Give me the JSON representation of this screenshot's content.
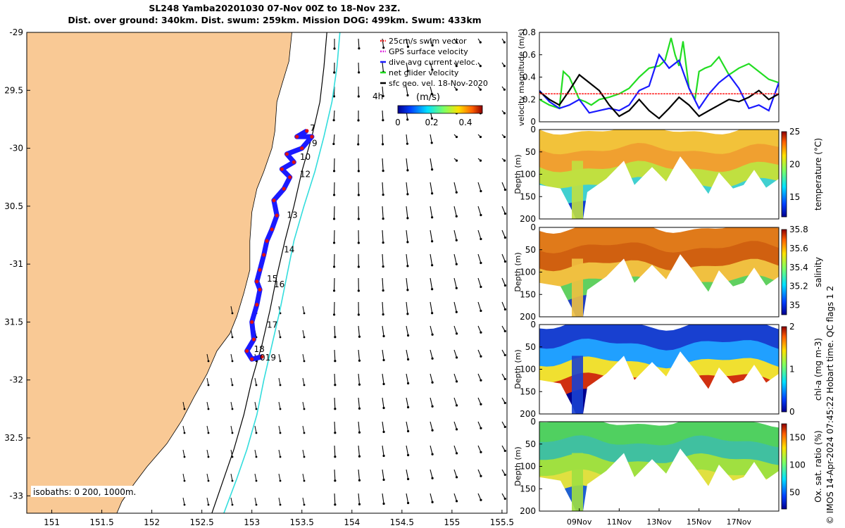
{
  "header": {
    "line1": "SL248 Yamba20201030 07-Nov 00Z to 18-Nov 23Z.",
    "line2": "Dist. over ground: 340km. Dist. swum: 259km. Mission DOG: 499km. Swum: 433km"
  },
  "credit": "© IMOS 14-Apr-2024 07:45:22 Hobart time. QC flags 1  2",
  "colors": {
    "land": "#f9c995",
    "glider_track": "#1a1aff",
    "track_points": "#e01010",
    "shelf_isobath": "#33dddd",
    "deep_isobath": "#000000"
  },
  "chart_data": [
    {
      "type": "scatter",
      "panel": "map",
      "xlim": [
        150.75,
        155.55
      ],
      "ylim": [
        -33.15,
        -29.0
      ],
      "xticks": [
        151,
        151.5,
        152,
        152.5,
        153,
        153.5,
        154,
        154.5,
        155,
        155.5
      ],
      "xtick_labels": [
        "151",
        "151.5",
        "152",
        "152.5",
        "153",
        "153.5",
        "154",
        "154.5",
        "155",
        "155.5"
      ],
      "yticks": [
        -29,
        -29.5,
        -30,
        -30.5,
        -31,
        -31.5,
        -32,
        -32.5,
        -33
      ],
      "ytick_labels": [
        "-29",
        "29.5",
        "-30",
        "30.5",
        "-31",
        "31.5",
        "-32",
        "32.5",
        "-33"
      ],
      "coast": [
        [
          153.4,
          -29.0
        ],
        [
          153.37,
          -29.25
        ],
        [
          153.3,
          -29.45
        ],
        [
          153.25,
          -29.6
        ],
        [
          153.23,
          -29.85
        ],
        [
          153.2,
          -30.0
        ],
        [
          153.12,
          -30.2
        ],
        [
          153.05,
          -30.35
        ],
        [
          153.0,
          -30.55
        ],
        [
          152.98,
          -30.8
        ],
        [
          152.98,
          -31.05
        ],
        [
          152.92,
          -31.25
        ],
        [
          152.85,
          -31.45
        ],
        [
          152.78,
          -31.6
        ],
        [
          152.65,
          -31.75
        ],
        [
          152.55,
          -31.95
        ],
        [
          152.42,
          -32.15
        ],
        [
          152.3,
          -32.35
        ],
        [
          152.15,
          -32.55
        ],
        [
          151.95,
          -32.75
        ],
        [
          151.82,
          -32.9
        ],
        [
          151.7,
          -33.05
        ],
        [
          151.65,
          -33.15
        ]
      ],
      "isobath_200": [
        [
          153.88,
          -29.0
        ],
        [
          153.85,
          -29.3
        ],
        [
          153.8,
          -29.6
        ],
        [
          153.72,
          -29.9
        ],
        [
          153.63,
          -30.2
        ],
        [
          153.52,
          -30.5
        ],
        [
          153.42,
          -30.8
        ],
        [
          153.35,
          -31.1
        ],
        [
          153.28,
          -31.4
        ],
        [
          153.2,
          -31.7
        ],
        [
          153.12,
          -32.0
        ],
        [
          153.05,
          -32.3
        ],
        [
          152.95,
          -32.6
        ],
        [
          152.85,
          -32.85
        ],
        [
          152.72,
          -33.15
        ]
      ],
      "isobath_1000": [
        [
          153.75,
          -29.0
        ],
        [
          153.72,
          -29.3
        ],
        [
          153.68,
          -29.6
        ],
        [
          153.6,
          -29.9
        ],
        [
          153.5,
          -30.2
        ],
        [
          153.42,
          -30.5
        ],
        [
          153.33,
          -30.8
        ],
        [
          153.25,
          -31.1
        ],
        [
          153.18,
          -31.4
        ],
        [
          153.1,
          -31.7
        ],
        [
          153.0,
          -32.0
        ],
        [
          152.92,
          -32.3
        ],
        [
          152.82,
          -32.6
        ],
        [
          152.72,
          -32.85
        ],
        [
          152.6,
          -33.15
        ]
      ],
      "track": [
        [
          153.55,
          -29.85
        ],
        [
          153.45,
          -29.9
        ],
        [
          153.6,
          -29.9
        ],
        [
          153.5,
          -30.0
        ],
        [
          153.35,
          -30.05
        ],
        [
          153.42,
          -30.12
        ],
        [
          153.3,
          -30.18
        ],
        [
          153.38,
          -30.25
        ],
        [
          153.32,
          -30.35
        ],
        [
          153.22,
          -30.45
        ],
        [
          153.25,
          -30.58
        ],
        [
          153.2,
          -30.7
        ],
        [
          153.15,
          -30.8
        ],
        [
          153.12,
          -30.92
        ],
        [
          153.08,
          -31.05
        ],
        [
          153.05,
          -31.15
        ],
        [
          153.08,
          -31.22
        ],
        [
          153.05,
          -31.35
        ],
        [
          153.0,
          -31.5
        ],
        [
          153.02,
          -31.65
        ],
        [
          152.95,
          -31.75
        ],
        [
          153.0,
          -31.82
        ],
        [
          153.1,
          -31.8
        ]
      ],
      "day_labels": [
        {
          "text": "7",
          "lon": 153.58,
          "lat": -29.85
        },
        {
          "text": "9",
          "lon": 153.6,
          "lat": -29.98
        },
        {
          "text": "10",
          "lon": 153.48,
          "lat": -30.1
        },
        {
          "text": "12",
          "lon": 153.48,
          "lat": -30.25
        },
        {
          "text": "13",
          "lon": 153.35,
          "lat": -30.6
        },
        {
          "text": "14",
          "lon": 153.32,
          "lat": -30.9
        },
        {
          "text": "15",
          "lon": 153.15,
          "lat": -31.15
        },
        {
          "text": "16",
          "lon": 153.22,
          "lat": -31.2
        },
        {
          "text": "17",
          "lon": 153.15,
          "lat": -31.55
        },
        {
          "text": "18",
          "lon": 153.02,
          "lat": -31.76
        },
        {
          "text": "019",
          "lon": 153.08,
          "lat": -31.83
        }
      ],
      "legend": [
        "25cm/s swim vector",
        "GPS surface velocity",
        "dive avg current veloc.",
        "net glider velocity",
        "sfc geo. vel. 18-Nov-2020"
      ],
      "legend_colors": [
        "#ff2020",
        "#dd22dd",
        "#1a1aff",
        "#22dd22",
        "#000000"
      ],
      "vector_label": "4h",
      "colorbar": {
        "label": "(m/s)",
        "range": [
          0,
          0.5
        ],
        "ticks": [
          0,
          0.2,
          0.4
        ],
        "tick_labels": [
          "0",
          "0.2",
          "0.4"
        ]
      },
      "isobath_note": "isobaths: 0   200, 1000m."
    },
    {
      "type": "line",
      "panel": "velocity",
      "ylabel": "velocity magnitude (m/s)",
      "ylim": [
        0,
        0.8
      ],
      "yticks": [
        0,
        0.2,
        0.4,
        0.6,
        0.8
      ],
      "ytick_labels": [
        "0",
        "0.2",
        "0.4",
        "0.6",
        "0.8"
      ],
      "xlim": [
        7,
        19
      ],
      "series": [
        {
          "color": "#22dd22",
          "x": [
            7,
            7.5,
            8,
            8.2,
            8.5,
            9,
            9.3,
            9.6,
            10,
            10.5,
            11,
            11.5,
            12,
            12.5,
            13,
            13.3,
            13.6,
            13.8,
            14,
            14.2,
            14.5,
            14.8,
            15,
            15.3,
            15.6,
            16,
            16.5,
            17,
            17.5,
            18,
            18.5,
            19
          ],
          "y": [
            0.2,
            0.15,
            0.12,
            0.45,
            0.4,
            0.2,
            0.18,
            0.15,
            0.2,
            0.22,
            0.25,
            0.3,
            0.4,
            0.48,
            0.5,
            0.55,
            0.75,
            0.6,
            0.5,
            0.72,
            0.3,
            0.2,
            0.45,
            0.48,
            0.5,
            0.58,
            0.42,
            0.48,
            0.52,
            0.45,
            0.38,
            0.35
          ]
        },
        {
          "color": "#1a1aff",
          "x": [
            7,
            7.5,
            8,
            8.5,
            9,
            9.5,
            10,
            10.5,
            11,
            11.5,
            12,
            12.5,
            13,
            13.5,
            14,
            14.5,
            15,
            15.5,
            16,
            16.5,
            17,
            17.5,
            18,
            18.5,
            19
          ],
          "y": [
            0.28,
            0.18,
            0.12,
            0.15,
            0.2,
            0.08,
            0.1,
            0.12,
            0.1,
            0.15,
            0.28,
            0.32,
            0.6,
            0.48,
            0.55,
            0.3,
            0.12,
            0.25,
            0.35,
            0.42,
            0.3,
            0.12,
            0.15,
            0.1,
            0.35
          ]
        },
        {
          "color": "#000000",
          "x": [
            7,
            7.5,
            8,
            8.5,
            9,
            9.5,
            10,
            10.5,
            11,
            11.5,
            12,
            12.5,
            13,
            13.5,
            14,
            14.5,
            15,
            15.5,
            16,
            16.5,
            17,
            17.5,
            18,
            18.5,
            19
          ],
          "y": [
            0.27,
            0.2,
            0.15,
            0.28,
            0.42,
            0.35,
            0.28,
            0.15,
            0.05,
            0.1,
            0.2,
            0.1,
            0.03,
            0.12,
            0.22,
            0.15,
            0.05,
            0.1,
            0.15,
            0.2,
            0.18,
            0.22,
            0.28,
            0.2,
            0.25
          ]
        },
        {
          "color": "#ff2020",
          "x": [
            7,
            19
          ],
          "y": [
            0.25,
            0.25
          ]
        }
      ]
    },
    {
      "type": "heatmap",
      "panel": "temperature",
      "ylabel": "Depth (m)",
      "cbar_label": "temperature (°C)",
      "ylim": [
        0,
        200
      ],
      "yticks": [
        0,
        50,
        100,
        150,
        200
      ],
      "ytick_labels": [
        "0",
        "50",
        "100",
        "150",
        "200"
      ],
      "cbar_ticks": [
        "25",
        "20",
        "15"
      ],
      "cbar_range": [
        12,
        25
      ]
    },
    {
      "type": "heatmap",
      "panel": "salinity",
      "ylabel": "Depth (m)",
      "cbar_label": "salinity",
      "ylim": [
        0,
        200
      ],
      "yticks": [
        0,
        50,
        100,
        150,
        200
      ],
      "ytick_labels": [
        "0",
        "50",
        "100",
        "150",
        "200"
      ],
      "cbar_ticks": [
        "35.8",
        "35.6",
        "35.4",
        "35.2",
        "35"
      ],
      "cbar_range": [
        34.9,
        35.8
      ]
    },
    {
      "type": "heatmap",
      "panel": "chlorophyll",
      "ylabel": "Depth (m)",
      "cbar_label": "chl-a (mg m-3)",
      "ylim": [
        0,
        200
      ],
      "yticks": [
        0,
        50,
        100,
        150,
        200
      ],
      "ytick_labels": [
        "0",
        "50",
        "100",
        "150",
        "200"
      ],
      "cbar_ticks": [
        "2",
        "1",
        "0"
      ],
      "cbar_range": [
        0,
        2
      ]
    },
    {
      "type": "heatmap",
      "panel": "oxygen",
      "ylabel": "Depth (m)",
      "cbar_label": "Ox. sat. ratio (%)",
      "ylim": [
        0,
        200
      ],
      "yticks": [
        0,
        50,
        100,
        150,
        200
      ],
      "ytick_labels": [
        "0",
        "50",
        "100",
        "150",
        "200"
      ],
      "cbar_ticks": [
        "150",
        "100",
        "50"
      ],
      "cbar_range": [
        20,
        175
      ],
      "xtick_labels": [
        "09Nov",
        "11Nov",
        "13Nov",
        "15Nov",
        "17Nov"
      ],
      "xtick_days": [
        9,
        11,
        13,
        15,
        17
      ]
    }
  ]
}
